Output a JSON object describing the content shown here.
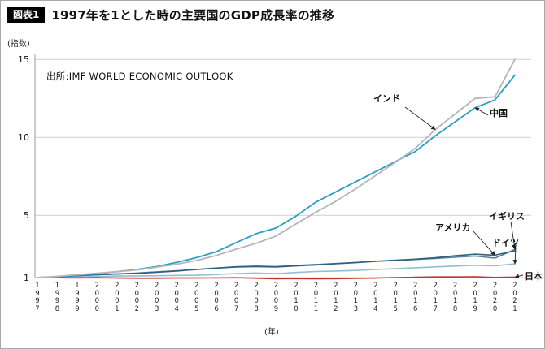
{
  "header": {
    "badge": "図表1",
    "title": "1997年を1とした時の主要国のGDP成長率の推移"
  },
  "source": "出所:IMF WORLD ECONOMIC OUTLOOK",
  "axis": {
    "y_unit": "(指数)",
    "x_unit": "(年)",
    "y_ticks": [
      1,
      5,
      10,
      15
    ]
  },
  "chart_data": {
    "type": "line",
    "title": "1997年を1とした時の主要国のGDP成長率の推移",
    "xlabel": "(年)",
    "ylabel": "(指数)",
    "ylim": [
      1,
      15.5
    ],
    "grid": true,
    "legend_position": "inline-annotations",
    "x": [
      1997,
      1998,
      1999,
      2000,
      2001,
      2002,
      2003,
      2004,
      2005,
      2006,
      2007,
      2008,
      2009,
      2010,
      2011,
      2012,
      2013,
      2014,
      2015,
      2016,
      2017,
      2018,
      2019,
      2020,
      2021
    ],
    "series": [
      {
        "name": "インド",
        "color": "#b3b6ba",
        "values": [
          1.0,
          1.08,
          1.19,
          1.28,
          1.38,
          1.49,
          1.67,
          1.86,
          2.1,
          2.42,
          2.83,
          3.2,
          3.67,
          4.45,
          5.2,
          5.9,
          6.7,
          7.55,
          8.4,
          9.3,
          10.5,
          11.5,
          12.5,
          12.6,
          15.0
        ]
      },
      {
        "name": "中国",
        "color": "#2e9dc6",
        "values": [
          1.0,
          1.07,
          1.14,
          1.25,
          1.38,
          1.52,
          1.71,
          1.98,
          2.28,
          2.66,
          3.25,
          3.82,
          4.18,
          4.95,
          5.85,
          6.5,
          7.15,
          7.8,
          8.45,
          9.1,
          10.1,
          11.0,
          11.9,
          12.4,
          14.0
        ]
      },
      {
        "name": "アメリカ",
        "color": "#31607f",
        "values": [
          1.0,
          1.06,
          1.12,
          1.19,
          1.23,
          1.27,
          1.34,
          1.42,
          1.52,
          1.61,
          1.68,
          1.71,
          1.68,
          1.75,
          1.81,
          1.89,
          1.96,
          2.04,
          2.12,
          2.18,
          2.27,
          2.4,
          2.5,
          2.44,
          2.72
        ]
      },
      {
        "name": "イギリス",
        "color": "#52829f",
        "values": [
          1.0,
          1.06,
          1.12,
          1.18,
          1.23,
          1.29,
          1.37,
          1.44,
          1.52,
          1.61,
          1.7,
          1.74,
          1.71,
          1.78,
          1.84,
          1.9,
          1.97,
          2.05,
          2.1,
          2.16,
          2.23,
          2.31,
          2.38,
          2.25,
          2.8
        ]
      },
      {
        "name": "ドイツ",
        "color": "#93bdd2",
        "values": [
          1.0,
          1.02,
          1.04,
          1.07,
          1.1,
          1.11,
          1.12,
          1.14,
          1.15,
          1.2,
          1.26,
          1.29,
          1.25,
          1.33,
          1.39,
          1.42,
          1.46,
          1.52,
          1.57,
          1.63,
          1.69,
          1.74,
          1.79,
          1.76,
          1.88
        ]
      },
      {
        "name": "日本",
        "color": "#c8322b",
        "values": [
          1.0,
          0.99,
          0.98,
          0.99,
          0.97,
          0.96,
          0.96,
          0.97,
          0.97,
          0.98,
          0.99,
          0.96,
          0.92,
          0.94,
          0.92,
          0.93,
          0.95,
          0.97,
          1.0,
          1.02,
          1.04,
          1.04,
          1.05,
          1.01,
          1.03
        ]
      }
    ]
  }
}
